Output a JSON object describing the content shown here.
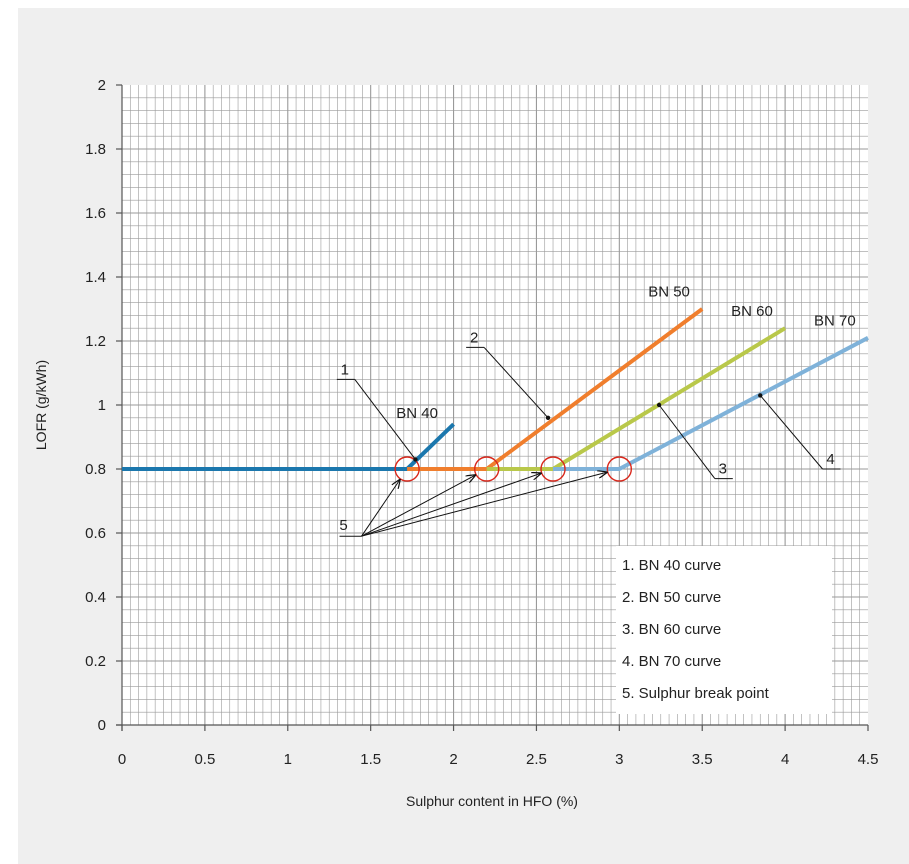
{
  "chart_data": {
    "type": "line",
    "xlabel": "Sulphur content in HFO (%)",
    "ylabel": "LOFR (g/kWh)",
    "xlim": [
      0,
      4.5
    ],
    "ylim": [
      0,
      2
    ],
    "x_ticks": [
      "0",
      "0.5",
      "1",
      "1.5",
      "2",
      "2.5",
      "3",
      "3.5",
      "4",
      "4.5"
    ],
    "y_ticks": [
      "0",
      "0.2",
      "0.4",
      "0.6",
      "0.8",
      "1",
      "1.2",
      "1.4",
      "1.6",
      "1.8",
      "2"
    ],
    "grid": true,
    "series": [
      {
        "name": "BN 40",
        "color": "#1b77ad",
        "x": [
          0,
          1.72,
          2.0
        ],
        "y": [
          0.8,
          0.8,
          0.94
        ]
      },
      {
        "name": "BN 50",
        "color": "#f07e2d",
        "x": [
          1.72,
          2.2,
          3.5
        ],
        "y": [
          0.8,
          0.8,
          1.3
        ]
      },
      {
        "name": "BN 60",
        "color": "#b9c84a",
        "x": [
          2.2,
          2.6,
          4.0
        ],
        "y": [
          0.8,
          0.8,
          1.24
        ]
      },
      {
        "name": "BN 70",
        "color": "#7fb2d9",
        "x": [
          2.6,
          3.0,
          4.5
        ],
        "y": [
          0.8,
          0.8,
          1.21
        ]
      }
    ],
    "break_points": [
      {
        "x": 1.72,
        "y": 0.8
      },
      {
        "x": 2.2,
        "y": 0.8
      },
      {
        "x": 2.6,
        "y": 0.8
      },
      {
        "x": 3.0,
        "y": 0.8
      }
    ],
    "break_point_color": "#d9281c",
    "curve_labels": [
      {
        "text": "BN 40",
        "x": 1.78,
        "y": 0.94
      },
      {
        "text": "BN 50",
        "x": 3.3,
        "y": 1.32
      },
      {
        "text": "BN 60",
        "x": 3.8,
        "y": 1.26
      },
      {
        "text": "BN 70",
        "x": 4.3,
        "y": 1.23
      }
    ],
    "callouts": [
      {
        "number": "1",
        "label_x": 1.32,
        "label_y": 1.08,
        "target_x": 1.77,
        "target_y": 0.83
      },
      {
        "number": "2",
        "label_x": 2.1,
        "label_y": 1.18,
        "target_x": 2.57,
        "target_y": 0.96
      },
      {
        "number": "3",
        "label_x": 3.6,
        "label_y": 0.77,
        "target_x": 3.24,
        "target_y": 1.0
      },
      {
        "number": "4",
        "label_x": 4.25,
        "label_y": 0.8,
        "target_x": 3.85,
        "target_y": 1.03
      }
    ],
    "arrows_callout": {
      "number": "5",
      "label_x": 1.3,
      "label_y": 0.59
    },
    "legend": {
      "placement": "bottom-right",
      "items": [
        "1.  BN 40 curve",
        "2. BN 50 curve",
        "3. BN 60 curve",
        "4. BN 70 curve",
        "5. Sulphur break point"
      ]
    }
  }
}
